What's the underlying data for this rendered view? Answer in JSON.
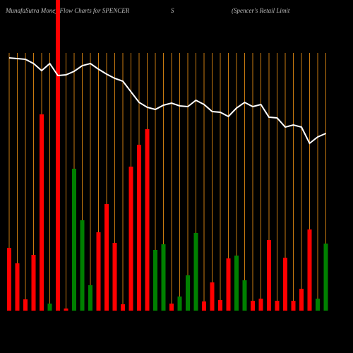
{
  "chart_data": {
    "type": "bar",
    "title_parts": [
      "MunafaSutra  Money Flow  Charts for SPENCER",
      "S",
      "(Spencer's Retail Limit"
    ],
    "categories": [
      null,
      null,
      null,
      null,
      null,
      null,
      null,
      null,
      null,
      null,
      null,
      null,
      null,
      null,
      null,
      null,
      null,
      null,
      null,
      null,
      null,
      null,
      null,
      null,
      null,
      null,
      null,
      null,
      null,
      null,
      null,
      null,
      null,
      null,
      null,
      null,
      null,
      null,
      null,
      null
    ],
    "values": [
      89,
      67,
      16,
      79,
      278,
      10,
      445,
      3,
      201,
      128,
      36,
      111,
      151,
      96,
      9,
      204,
      235,
      257,
      86,
      94,
      10,
      20,
      50,
      110,
      13,
      40,
      15,
      74,
      78,
      43,
      14,
      17,
      100,
      14,
      75,
      14,
      31,
      115,
      17,
      95
    ],
    "colors": [
      "red",
      "red",
      "red",
      "red",
      "red",
      "green",
      "red",
      "red",
      "green",
      "green",
      "green",
      "red",
      "red",
      "red",
      "red",
      "red",
      "red",
      "red",
      "green",
      "green",
      "red",
      "green",
      "green",
      "green",
      "red",
      "red",
      "red",
      "red",
      "green",
      "green",
      "red",
      "red",
      "red",
      "red",
      "red",
      "red",
      "red",
      "red",
      "green",
      "green"
    ],
    "line": {
      "color": "#ffffff",
      "values": [
        358,
        357,
        356,
        350,
        340,
        350,
        333,
        334,
        339,
        347,
        350,
        342,
        335,
        329,
        325,
        310,
        295,
        288,
        285,
        291,
        294,
        290,
        289,
        298,
        292,
        282,
        281,
        275,
        287,
        295,
        289,
        292,
        274,
        273,
        260,
        263,
        260,
        237,
        246,
        251
      ]
    },
    "ylim": [
      0,
      440
    ],
    "grid": true,
    "grid_color": "#c87a10"
  }
}
